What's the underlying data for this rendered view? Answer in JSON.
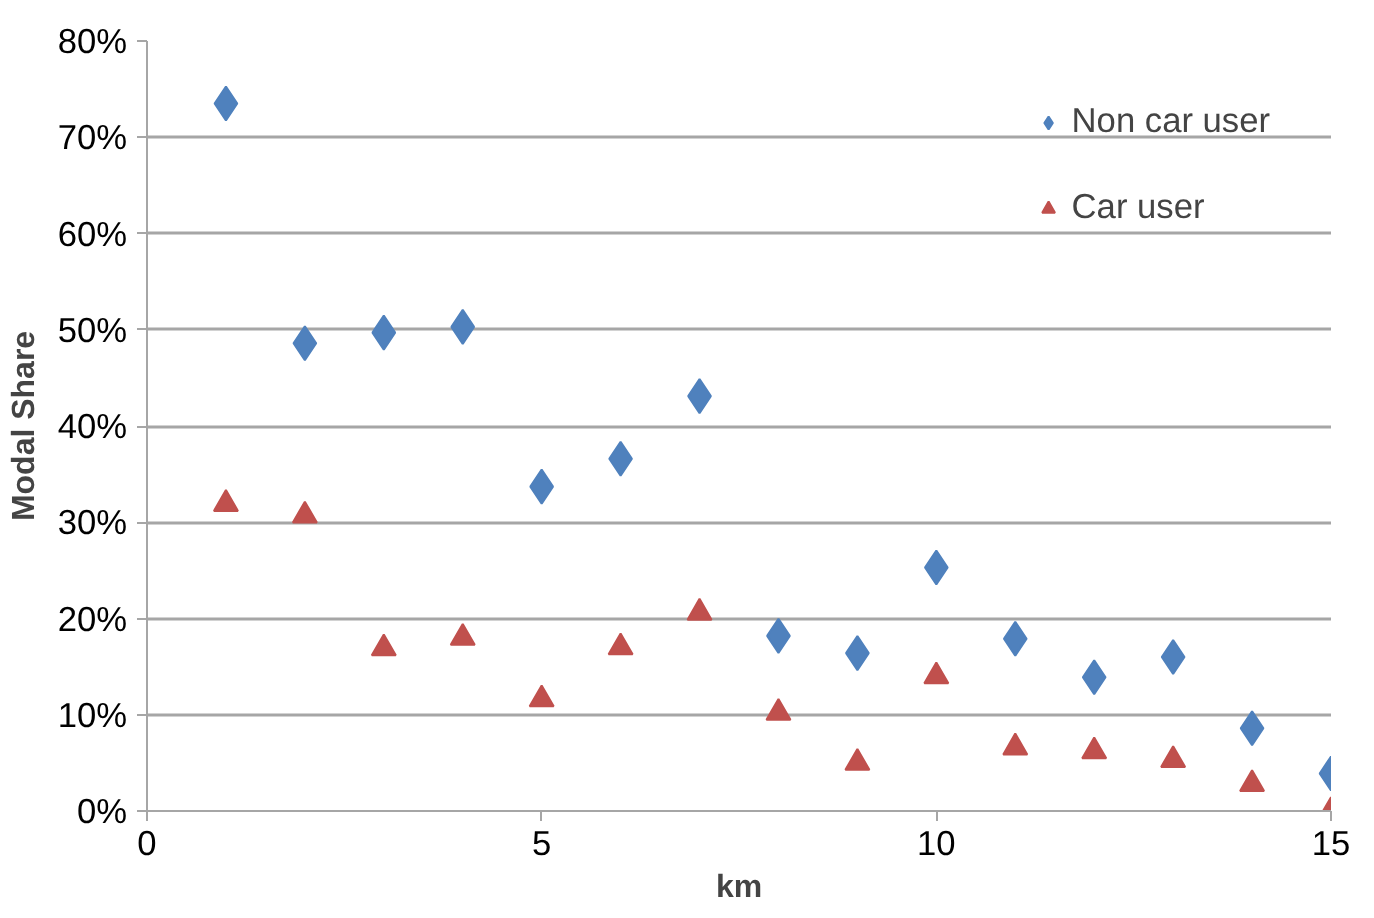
{
  "chart_data": {
    "type": "scatter",
    "xlabel": "km",
    "ylabel": "Modal Share",
    "x": [
      1,
      2,
      3,
      4,
      5,
      6,
      7,
      8,
      9,
      10,
      11,
      12,
      13,
      14,
      15
    ],
    "series": [
      {
        "name": "Non car user",
        "color": "#4f81bd",
        "marker": "diamond",
        "values": [
          73.5,
          48.6,
          49.7,
          50.3,
          33.7,
          36.6,
          43.1,
          18.2,
          16.4,
          25.3,
          17.9,
          13.9,
          16.0,
          8.6,
          3.9
        ]
      },
      {
        "name": "Car user",
        "color": "#c0504d",
        "marker": "triangle",
        "values": [
          31.9,
          30.7,
          16.9,
          18.0,
          11.6,
          17.0,
          20.6,
          10.2,
          5.0,
          14.0,
          6.6,
          6.2,
          5.3,
          2.8,
          0
        ]
      }
    ],
    "xlim": [
      0,
      15
    ],
    "xticks": [
      0,
      5,
      10,
      15
    ],
    "ylim": [
      0,
      80
    ],
    "yticks": [
      {
        "value": 0,
        "label": "0%"
      },
      {
        "value": 10,
        "label": "10%"
      },
      {
        "value": 20,
        "label": "20%"
      },
      {
        "value": 30,
        "label": "30%"
      },
      {
        "value": 40,
        "label": "40%"
      },
      {
        "value": 50,
        "label": "50%"
      },
      {
        "value": 60,
        "label": "60%"
      },
      {
        "value": 70,
        "label": "70%"
      },
      {
        "value": 80,
        "label": "80%"
      }
    ],
    "grid": "y",
    "legend": "top right"
  }
}
